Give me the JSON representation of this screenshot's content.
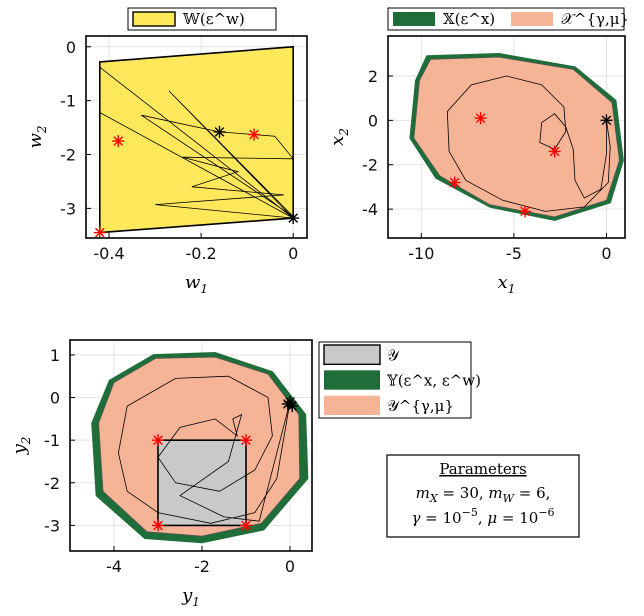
{
  "colors": {
    "yellow": "#fde85c",
    "salmon": "#f6b496",
    "green": "#1f6e3a",
    "gray": "#c9c9c9",
    "red": "#ff0000",
    "black": "#000000"
  },
  "parameters": {
    "title": "Parameters",
    "line1": "m_X = 30,  m_W = 6,",
    "line2": "γ = 10^{−5},  μ = 10^{−6}"
  },
  "chart_data": [
    {
      "type": "scatter",
      "id": "w-plane",
      "xlabel": "w_1",
      "ylabel": "w_2",
      "xlim": [
        -0.45,
        0.03
      ],
      "ylim": [
        -3.55,
        0.2
      ],
      "xticks": [
        -0.4,
        -0.2,
        0
      ],
      "yticks": [
        0,
        -1,
        -2,
        -3
      ],
      "xtick_labels": [
        "-0.4",
        "-0.2",
        "0"
      ],
      "ytick_labels": [
        "0",
        "-1",
        "-2",
        "-3"
      ],
      "grid": true,
      "legend": [
        {
          "label": "𝕎(ε^w)",
          "color": "yellow"
        }
      ],
      "legend_position": "top",
      "region_W": [
        [
          -0.42,
          -0.28
        ],
        [
          0.0,
          0.0
        ],
        [
          0.0,
          -3.18
        ],
        [
          -0.42,
          -3.45
        ]
      ],
      "trajectory": [
        [
          0.0,
          -3.18
        ],
        [
          -0.42,
          -0.38
        ],
        [
          0.0,
          -3.18
        ],
        [
          -0.27,
          -0.82
        ],
        [
          0.0,
          -3.15
        ],
        [
          -0.33,
          -1.27
        ],
        [
          -0.16,
          -1.58
        ],
        [
          -0.04,
          -1.66
        ],
        [
          0.0,
          -2.08
        ],
        [
          -0.24,
          -2.05
        ],
        [
          -0.12,
          -2.32
        ],
        [
          -0.22,
          -2.6
        ],
        [
          -0.02,
          -2.75
        ],
        [
          -0.3,
          -2.93
        ],
        [
          0.0,
          -3.18
        ],
        [
          -0.42,
          -1.22
        ],
        [
          0.0,
          -3.18
        ]
      ],
      "markers_red": [
        [
          -0.42,
          -3.45
        ],
        [
          -0.38,
          -1.75
        ],
        [
          -0.085,
          -1.63
        ]
      ],
      "markers_black": [
        [
          0.0,
          -3.18
        ],
        [
          -0.16,
          -1.58
        ]
      ]
    },
    {
      "type": "scatter",
      "id": "x-plane",
      "xlabel": "x_1",
      "ylabel": "x_2",
      "xlim": [
        -11.8,
        1.0
      ],
      "ylim": [
        -5.3,
        3.8
      ],
      "xticks": [
        -10,
        -5,
        0
      ],
      "yticks": [
        2,
        0,
        -2,
        -4
      ],
      "xtick_labels": [
        "-10",
        "-5",
        "0"
      ],
      "ytick_labels": [
        "2",
        "0",
        "-2",
        "-4"
      ],
      "grid": true,
      "legend": [
        {
          "label": "𝕏(ε^x)",
          "color": "green"
        },
        {
          "label": "𝒳^{γ,μ}",
          "color": "salmon"
        }
      ],
      "legend_position": "top",
      "region_X": [
        [
          -10.3,
          1.8
        ],
        [
          -9.7,
          2.9
        ],
        [
          -5.8,
          3.0
        ],
        [
          -1.7,
          2.4
        ],
        [
          0.5,
          0.9
        ],
        [
          0.9,
          -1.8
        ],
        [
          0.2,
          -3.7
        ],
        [
          -2.8,
          -4.5
        ],
        [
          -6.3,
          -3.9
        ],
        [
          -9.2,
          -2.6
        ],
        [
          -10.6,
          -0.8
        ]
      ],
      "region_Xgm": [
        [
          -10.1,
          1.8
        ],
        [
          -9.5,
          2.75
        ],
        [
          -5.8,
          2.85
        ],
        [
          -1.8,
          2.3
        ],
        [
          0.3,
          0.8
        ],
        [
          0.7,
          -1.8
        ],
        [
          0.0,
          -3.6
        ],
        [
          -2.8,
          -4.35
        ],
        [
          -6.3,
          -3.8
        ],
        [
          -9.0,
          -2.5
        ],
        [
          -10.4,
          -0.8
        ]
      ],
      "trajectory": [
        [
          0.0,
          0.0
        ],
        [
          0.2,
          -1.2
        ],
        [
          0.1,
          -2.8
        ],
        [
          -1.2,
          -3.9
        ],
        [
          -3.3,
          -4.1
        ],
        [
          -5.6,
          -3.6
        ],
        [
          -7.6,
          -2.7
        ],
        [
          -8.5,
          -1.4
        ],
        [
          -8.6,
          0.4
        ],
        [
          -7.3,
          1.6
        ],
        [
          -5.4,
          2.0
        ],
        [
          -3.5,
          1.6
        ],
        [
          -2.3,
          0.6
        ],
        [
          -2.2,
          -0.5
        ],
        [
          -2.8,
          -1.3
        ],
        [
          -3.6,
          -1.0
        ],
        [
          -3.5,
          -0.1
        ],
        [
          -2.8,
          0.3
        ],
        [
          -2.2,
          -0.3
        ],
        [
          -1.8,
          -1.3
        ],
        [
          -1.7,
          -2.7
        ],
        [
          -1.2,
          -3.5
        ],
        [
          -0.3,
          -3.1
        ],
        [
          0.0,
          -1.5
        ],
        [
          0.0,
          0.0
        ]
      ],
      "markers_red": [
        [
          -6.8,
          0.1
        ],
        [
          -2.8,
          -1.4
        ],
        [
          -8.2,
          -2.8
        ],
        [
          -4.4,
          -4.1
        ]
      ],
      "markers_black": [
        [
          0.0,
          0.0
        ]
      ]
    },
    {
      "type": "scatter",
      "id": "y-plane",
      "xlabel": "y_1",
      "ylabel": "y_2",
      "xlim": [
        -5.0,
        0.5
      ],
      "ylim": [
        -3.6,
        1.35
      ],
      "xticks": [
        -4,
        -2,
        0
      ],
      "yticks": [
        1,
        0,
        -1,
        -2,
        -3
      ],
      "xtick_labels": [
        "-4",
        "-2",
        "0"
      ],
      "ytick_labels": [
        "1",
        "0",
        "-1",
        "-2",
        "-3"
      ],
      "grid": true,
      "legend": [
        {
          "label": "𝒴",
          "color": "gray"
        },
        {
          "label": "𝕐(ε^x, ε^w)",
          "color": "green"
        },
        {
          "label": "𝒴^{γ,μ}",
          "color": "salmon"
        }
      ],
      "legend_position": "right",
      "region_Yg": [
        [
          -4.5,
          -0.6
        ],
        [
          -4.1,
          0.4
        ],
        [
          -3.1,
          1.0
        ],
        [
          -1.7,
          1.05
        ],
        [
          -0.4,
          0.6
        ],
        [
          0.35,
          -0.4
        ],
        [
          0.4,
          -1.9
        ],
        [
          -0.6,
          -3.1
        ],
        [
          -2.0,
          -3.4
        ],
        [
          -3.3,
          -3.3
        ],
        [
          -4.4,
          -2.3
        ]
      ],
      "region_Yf": [
        [
          -4.35,
          -0.6
        ],
        [
          -4.0,
          0.35
        ],
        [
          -3.05,
          0.92
        ],
        [
          -1.7,
          0.95
        ],
        [
          -0.5,
          0.55
        ],
        [
          0.2,
          -0.4
        ],
        [
          0.22,
          -1.9
        ],
        [
          -0.65,
          -2.95
        ],
        [
          -2.0,
          -3.25
        ],
        [
          -3.25,
          -3.15
        ],
        [
          -4.25,
          -2.2
        ]
      ],
      "region_Y": [
        [
          -3.0,
          -1.0
        ],
        [
          -1.0,
          -1.0
        ],
        [
          -1.0,
          -3.0
        ],
        [
          -3.0,
          -3.0
        ]
      ],
      "trajectory": [
        [
          0.0,
          -0.1
        ],
        [
          -0.1,
          -0.7
        ],
        [
          -0.3,
          -1.9
        ],
        [
          -0.8,
          -2.7
        ],
        [
          -1.8,
          -2.95
        ],
        [
          -3.0,
          -2.7
        ],
        [
          -3.7,
          -2.2
        ],
        [
          -3.9,
          -1.3
        ],
        [
          -3.7,
          -0.2
        ],
        [
          -2.6,
          0.45
        ],
        [
          -1.4,
          0.5
        ],
        [
          -0.5,
          0.0
        ],
        [
          -0.4,
          -0.9
        ],
        [
          -0.8,
          -1.7
        ],
        [
          -1.6,
          -2.2
        ],
        [
          -2.6,
          -2.0
        ],
        [
          -3.0,
          -1.4
        ],
        [
          -2.5,
          -0.7
        ],
        [
          -1.7,
          -0.5
        ],
        [
          -1.2,
          -0.9
        ],
        [
          -1.3,
          -0.5
        ],
        [
          -1.1,
          -0.4
        ],
        [
          -1.4,
          -1.5
        ],
        [
          -2.5,
          -2.3
        ],
        [
          -1.5,
          -2.8
        ],
        [
          -0.7,
          -2.9
        ],
        [
          0.0,
          -0.1
        ]
      ],
      "markers_red": [
        [
          -3.0,
          -1.0
        ],
        [
          -1.0,
          -1.0
        ],
        [
          -1.0,
          -3.0
        ],
        [
          -3.0,
          -3.0
        ]
      ],
      "markers_black": [
        [
          0.0,
          -0.1
        ],
        [
          0.05,
          -0.2
        ],
        [
          -0.05,
          -0.15
        ]
      ]
    }
  ]
}
